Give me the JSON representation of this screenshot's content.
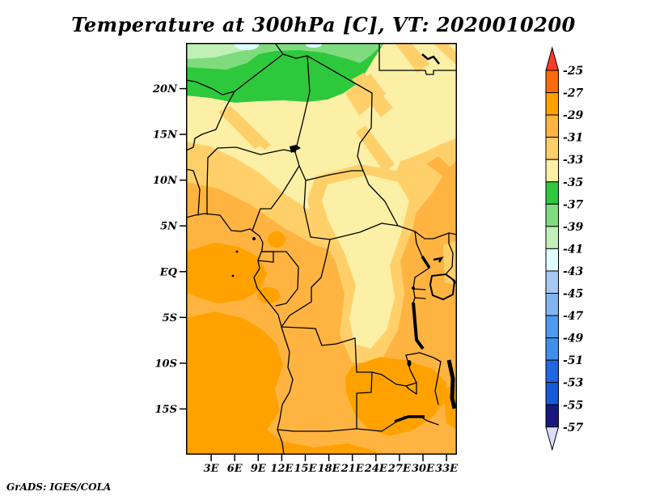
{
  "title": "Temperature at 300hPa [C], VT: 2020010200",
  "credit": "GrADS: IGES/COLA",
  "chart_data": {
    "type": "heatmap",
    "title": "Temperature at 300hPa [C], VT: 2020010200",
    "variable": "Temperature",
    "pressure_level": "300hPa",
    "units": "C",
    "valid_time": "2020010200",
    "map_extent": {
      "lon_min": 0,
      "lon_max": 35,
      "lat_min": -20,
      "lat_max": 25
    },
    "grid": false,
    "lat_ticks": [
      {
        "value": 20,
        "label": "20N"
      },
      {
        "value": 15,
        "label": "15N"
      },
      {
        "value": 10,
        "label": "10N"
      },
      {
        "value": 5,
        "label": "5N"
      },
      {
        "value": 0,
        "label": "EQ"
      },
      {
        "value": -5,
        "label": "5S"
      },
      {
        "value": -10,
        "label": "10S"
      },
      {
        "value": -15,
        "label": "15S"
      }
    ],
    "lon_ticks": [
      {
        "value": 3,
        "label": "3E"
      },
      {
        "value": 6,
        "label": "6E"
      },
      {
        "value": 9,
        "label": "9E"
      },
      {
        "value": 12,
        "label": "12E"
      },
      {
        "value": 15,
        "label": "15E"
      },
      {
        "value": 18,
        "label": "18E"
      },
      {
        "value": 21,
        "label": "21E"
      },
      {
        "value": 24,
        "label": "24E"
      },
      {
        "value": 27,
        "label": "27E"
      },
      {
        "value": 30,
        "label": "30E"
      },
      {
        "value": 33,
        "label": "33E"
      }
    ],
    "colorbar": {
      "orientation": "vertical",
      "position": "right",
      "tick_labels": [
        "-25",
        "-27",
        "-29",
        "-31",
        "-33",
        "-35",
        "-37",
        "-39",
        "-41",
        "-43",
        "-45",
        "-47",
        "-49",
        "-51",
        "-53",
        "-55",
        "-57"
      ],
      "above": {
        "label": "> -25",
        "color": "#f83c28"
      },
      "below": {
        "label": "< -57",
        "color": "#dcdcf8"
      },
      "segments": [
        {
          "key": "25-27",
          "range": [
            -27,
            -25
          ],
          "color": "#fb6b09"
        },
        {
          "key": "27-29",
          "range": [
            -29,
            -27
          ],
          "color": "#ffa200"
        },
        {
          "key": "29-31",
          "range": [
            -31,
            -29
          ],
          "color": "#ffb441"
        },
        {
          "key": "31-33",
          "range": [
            -33,
            -31
          ],
          "color": "#ffd06a"
        },
        {
          "key": "33-35",
          "range": [
            -35,
            -33
          ],
          "color": "#fcefa6"
        },
        {
          "key": "35-37",
          "range": [
            -37,
            -35
          ],
          "color": "#2ec83c"
        },
        {
          "key": "37-39",
          "range": [
            -39,
            -37
          ],
          "color": "#7edc7e"
        },
        {
          "key": "39-41",
          "range": [
            -41,
            -39
          ],
          "color": "#c0f0b8"
        },
        {
          "key": "41-43",
          "range": [
            -43,
            -41
          ],
          "color": "#defeff"
        },
        {
          "key": "43-45",
          "range": [
            -45,
            -43
          ],
          "color": "#a6c8f2"
        },
        {
          "key": "45-47",
          "range": [
            -47,
            -45
          ],
          "color": "#83b5f0"
        },
        {
          "key": "47-49",
          "range": [
            -49,
            -47
          ],
          "color": "#4d9af0"
        },
        {
          "key": "49-51",
          "range": [
            -51,
            -49
          ],
          "color": "#3f8eec"
        },
        {
          "key": "51-53",
          "range": [
            -53,
            -51
          ],
          "color": "#1f66e2"
        },
        {
          "key": "53-55",
          "range": [
            -55,
            -53
          ],
          "color": "#155ad8"
        },
        {
          "key": "55-57",
          "range": [
            -57,
            -55
          ],
          "color": "#18187e"
        }
      ]
    },
    "field_pattern": [
      "Coldest air (-35 to -41 C, greens) along northern edge near 20N-25N over the Sahara",
      "Pale yellow band (-33 to -35 C) across the Sahel and a large patch over Sudan and eastern DR Congo",
      "Mild band (-31 to -33 C) with NE-SW streaks between 5N and 15N",
      "Warmest air (-27 to -29 C, deep orange) over the southeast Atlantic, Angola and Zambia",
      "Background value -29 to -31 C over most of equatorial and southern Africa"
    ]
  }
}
